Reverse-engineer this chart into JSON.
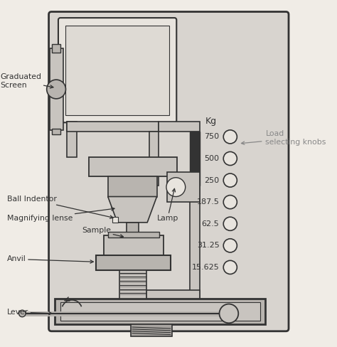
{
  "bg_color": "#f0ece6",
  "machine_bg": "#d8d4cf",
  "line_color": "#333333",
  "light_gray": "#c8c4bf",
  "mid_gray": "#b8b4af",
  "dark_gray": "#a8a4a0",
  "screen_fill": "#e8e4de",
  "labels": {
    "graduated_screen": "Graduated\nScreen",
    "ball_indentor": "Ball Indentor",
    "magnifying_lense": "Magnifying lense",
    "lamp": "Lamp",
    "sample": "Sample",
    "anvil": "Anvil",
    "lever": "Lever",
    "load_selecting": "Load\nselecting knobs",
    "kg": "Kg"
  },
  "load_values": [
    "750",
    "500",
    "250",
    "187.5",
    "62.5",
    "31.25",
    "15.625"
  ],
  "figsize": [
    4.74,
    4.88
  ],
  "dpi": 100
}
